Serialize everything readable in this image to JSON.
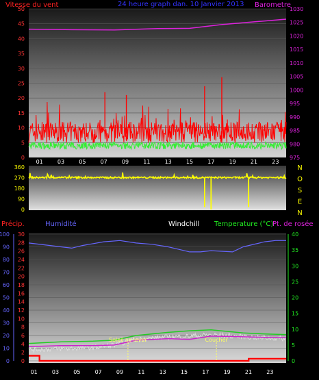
{
  "header": {
    "wind_title": "Vitesse du vent",
    "period_title": "24 heure graph dan. 10 Janvier 2013",
    "baro_title": "Barometre"
  },
  "bottom_header": {
    "precip": "Précip.",
    "humidity": "Humidité",
    "windchill": "Windchill",
    "temperature": "Temperature (°C)",
    "dewpoint": "Pt. de rosée"
  },
  "annotations": {
    "sunrise": "Soleil se lever",
    "sunset": "Coucher"
  },
  "direction_letters": [
    "N",
    "O",
    "S",
    "E",
    "N"
  ],
  "colors": {
    "wind_gust": "#ff0000",
    "wind_avg": "#33ee33",
    "baro": "#dd22dd",
    "direction": "#ffff00",
    "humidity": "#6666ff",
    "precip": "#ff0000",
    "temperature": "#22cc22",
    "dewpoint": "#cc22cc",
    "windchill": "#dddddd",
    "markers": "#ffff66"
  },
  "chart_data": [
    {
      "type": "line",
      "name": "wind-baro",
      "x_ticks": [
        "01",
        "03",
        "05",
        "07",
        "09",
        "11",
        "13",
        "15",
        "17",
        "19",
        "21",
        "23"
      ],
      "ylim_left": [
        0,
        50
      ],
      "yticks_left": [
        "0",
        "5",
        "10",
        "15",
        "20",
        "25",
        "30",
        "35",
        "40",
        "45",
        "50"
      ],
      "ylim_right": [
        975,
        1030
      ],
      "yticks_right": [
        "975",
        "980",
        "985",
        "990",
        "995",
        "1000",
        "1005",
        "1010",
        "1015",
        "1020",
        "1025",
        "1030"
      ],
      "baro": {
        "x": [
          0,
          4,
          8,
          12,
          15,
          18,
          21,
          24
        ],
        "y": [
          1022.5,
          1022.3,
          1022.2,
          1022.7,
          1022.8,
          1024.2,
          1025.2,
          1026.2
        ]
      },
      "wind_avg_level": 4,
      "wind_gust_level": 8,
      "wind_peaks": [
        {
          "x": 7.1,
          "y": 22
        },
        {
          "x": 9.1,
          "y": 21
        },
        {
          "x": 16.4,
          "y": 24
        },
        {
          "x": 18.0,
          "y": 27
        }
      ]
    },
    {
      "type": "line",
      "name": "wind-direction",
      "ylim": [
        0,
        360
      ],
      "yticks": [
        "0",
        "90",
        "180",
        "270",
        "360"
      ],
      "direction_level": 270,
      "spikes": [
        {
          "x": 16.4,
          "y": 20
        },
        {
          "x": 17.0,
          "y": 0
        },
        {
          "x": 20.5,
          "y": 20
        }
      ]
    },
    {
      "type": "line",
      "name": "humidity-temperature",
      "x_ticks": [
        "01",
        "03",
        "05",
        "07",
        "09",
        "11",
        "13",
        "15",
        "17",
        "19",
        "21",
        "23"
      ],
      "ylim_hum": [
        0,
        100
      ],
      "yticks_hum": [
        "0",
        "10",
        "20",
        "30",
        "40",
        "50",
        "60",
        "70",
        "80",
        "90",
        "100"
      ],
      "ylim_precip": [
        0,
        30
      ],
      "yticks_precip": [
        "0",
        "2",
        "4",
        "6",
        "8",
        "10",
        "12",
        "14",
        "16",
        "18",
        "20",
        "22",
        "24",
        "26",
        "28",
        "30"
      ],
      "ylim_temp": [
        0,
        40
      ],
      "yticks_temp": [
        "0",
        "5",
        "10",
        "15",
        "20",
        "25",
        "30",
        "35",
        "40"
      ],
      "humidity": {
        "x": [
          0,
          4,
          5,
          7,
          8.5,
          10,
          11.5,
          13,
          14,
          15,
          16,
          17,
          19,
          20,
          22,
          23,
          24
        ],
        "y": [
          93,
          89,
          91,
          94,
          95,
          93,
          92,
          90,
          88,
          86,
          86,
          87,
          86,
          90,
          94,
          95,
          95
        ]
      },
      "temperature": {
        "x": [
          0,
          3,
          6,
          8,
          10,
          13,
          15,
          17,
          20,
          22,
          24
        ],
        "y": [
          5.5,
          6.0,
          6.2,
          6.5,
          8.0,
          9.0,
          9.5,
          9.8,
          8.8,
          8.5,
          8.3
        ]
      },
      "dewpoint": {
        "x": [
          0,
          3,
          6,
          8,
          10,
          13,
          15,
          17,
          20,
          22,
          24
        ],
        "y": [
          4.5,
          4.8,
          4.8,
          5.0,
          6.5,
          7.0,
          6.8,
          7.8,
          7.6,
          7.4,
          7.3
        ]
      },
      "windchill": {
        "x": [
          0,
          3,
          6,
          8,
          10,
          13,
          15,
          17,
          20,
          22,
          24
        ],
        "y": [
          3.5,
          3.8,
          4.2,
          5.0,
          6.8,
          7.5,
          7.8,
          8.2,
          7.6,
          7.2,
          7.0
        ]
      },
      "precip": {
        "x": [
          0,
          1.0,
          1.0,
          20.5,
          20.5,
          24
        ],
        "y": [
          1.2,
          1.2,
          0,
          0,
          0.5,
          0.5
        ]
      },
      "sunrise_hour": 9.25,
      "sunset_hour": 17.5
    }
  ]
}
